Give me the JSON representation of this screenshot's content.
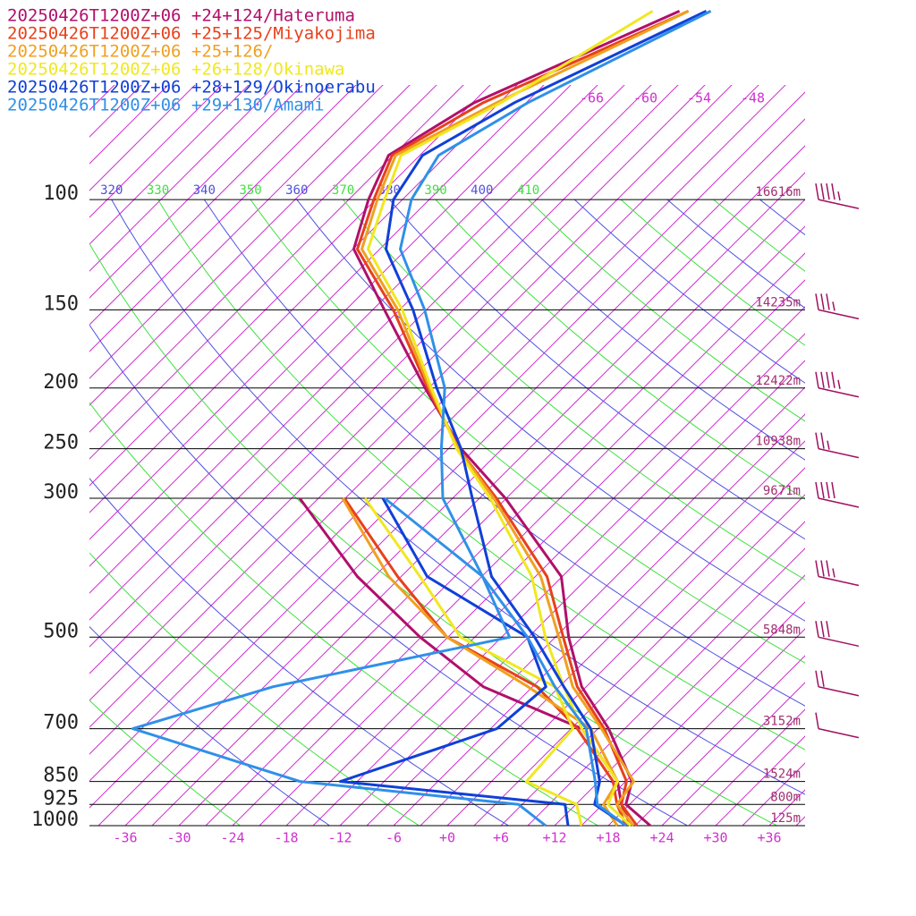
{
  "chart_data": {
    "type": "skewt",
    "ylim": [
      1000,
      48
    ],
    "ylog": true,
    "yticks": [
      100,
      150,
      200,
      250,
      300,
      500,
      700,
      850,
      925,
      1000
    ],
    "height_labels": [
      "16616m",
      "14235m",
      "12422m",
      "10938m",
      "9671m",
      "5848m",
      "3152m",
      "1524m",
      "800m",
      "125m"
    ],
    "xlim": [
      -40,
      40
    ],
    "xticks": [
      -36,
      -30,
      -24,
      -18,
      -12,
      -6,
      {
        "value": 0,
        "label": "+0"
      },
      {
        "value": 6,
        "label": "+6"
      },
      {
        "value": 12,
        "label": "+12"
      },
      {
        "value": 18,
        "label": "+18"
      },
      {
        "value": 24,
        "label": "+24"
      },
      {
        "value": 30,
        "label": "+30"
      },
      {
        "value": 36,
        "label": "+36"
      }
    ],
    "skew_deg": 45,
    "isotherm_interval": 3,
    "isotherm_color": "#d030d0",
    "isotherm_labels": [
      -66,
      -60,
      -54,
      -48
    ],
    "dry_adiabats": [
      250,
      260,
      270,
      280,
      290,
      300,
      310,
      320,
      330,
      340,
      350,
      360,
      370,
      380,
      390,
      400,
      410,
      420,
      430,
      440,
      450,
      460,
      470,
      480
    ],
    "dry_adiabat_labels": [
      320,
      330,
      340,
      350,
      360,
      370,
      380,
      390,
      400,
      410
    ],
    "dry_adiabat_colors": [
      "#5050e0",
      "#40e040"
    ],
    "levels": [
      1000,
      925,
      850,
      700,
      600,
      500,
      400,
      300,
      250,
      200,
      150,
      120,
      100,
      85,
      70,
      50
    ],
    "series": [
      {
        "name": "20250426T1200Z+06 +24+124/Hateruma",
        "color": "#b0106a",
        "temperature": [
          22.7,
          17.6,
          15.7,
          7.2,
          -0.5,
          -7.5,
          -15.1,
          -30.1,
          -40.6,
          -51.4,
          -64.7,
          -74.9,
          -78.8,
          -81.5,
          -77.8,
          -65.1
        ],
        "dewpoint": [
          20.5,
          17.1,
          14.1,
          4.2,
          -11.5,
          -24.1,
          -37.9,
          -53.1,
          null,
          null,
          null,
          null,
          null,
          null,
          null,
          null
        ]
      },
      {
        "name": "20250426T1200Z+06 +25+125/Miyakojima",
        "color": "#e8401c",
        "temperature": [
          21.2,
          17.1,
          15.1,
          6.7,
          -1.0,
          -8.1,
          -16.7,
          -31.1,
          -40.9,
          -51.1,
          -63.7,
          -74.5,
          -78.2,
          -81.1,
          -76.8,
          -64.1
        ],
        "dewpoint": [
          20.0,
          16.6,
          13.6,
          3.7,
          -5.5,
          -21.1,
          -33.4,
          -48.1,
          null,
          null,
          null,
          null,
          null,
          null,
          null,
          null
        ]
      },
      {
        "name": "20250426T1200Z+06 +25+126/",
        "color": "#f0a020",
        "temperature": [
          20.8,
          16.6,
          15.9,
          6.4,
          -1.5,
          -8.6,
          -17.4,
          -31.4,
          -40.9,
          -50.9,
          -63.2,
          -74.0,
          -77.8,
          -80.7,
          -75.3,
          -64.1
        ],
        "dewpoint": [
          19.0,
          15.1,
          14.1,
          5.2,
          -6.5,
          -21.1,
          -34.4,
          -48.3,
          null,
          null,
          null,
          null,
          null,
          null,
          null,
          null
        ]
      },
      {
        "name": "20250426T1200Z+06 +26+128/Okinawa",
        "color": "#f0e820",
        "temperature": [
          20.5,
          15.6,
          14.1,
          4.2,
          -2.5,
          -10.1,
          -18.4,
          -31.8,
          -41.1,
          -50.7,
          -62.7,
          -73.3,
          -77.0,
          -80.1,
          -74.8,
          -68.1
        ],
        "dewpoint": [
          15.0,
          12.1,
          3.9,
          3.2,
          -3.5,
          -19.6,
          -30.9,
          -45.8,
          null,
          null,
          null,
          null,
          null,
          null,
          null,
          null
        ]
      },
      {
        "name": "20250426T1200Z+06 +28+129/Okinoerabu",
        "color": "#1040d8",
        "temperature": [
          20.0,
          14.1,
          12.1,
          5.2,
          -2.5,
          -11.3,
          -22.9,
          -33.8,
          -40.6,
          -50.1,
          -61.5,
          -71.3,
          -76.0,
          -77.7,
          -73.3,
          -62.1
        ],
        "dewpoint": [
          13.5,
          10.8,
          -16.9,
          -5.3,
          -4.5,
          -12.1,
          -30.1,
          -43.8,
          null,
          null,
          null,
          null,
          null,
          null,
          null,
          null
        ]
      },
      {
        "name": "20250426T1200Z+06 +29+130/Amami",
        "color": "#3090e8",
        "temperature": [
          20.0,
          14.4,
          11.6,
          4.7,
          -3.5,
          -12.1,
          -23.9,
          -37.1,
          -42.8,
          -49.2,
          -60.2,
          -69.7,
          -74.0,
          -75.9,
          -71.8,
          -61.6
        ],
        "dewpoint": [
          11.0,
          5.6,
          -21.4,
          -46.0,
          -35.0,
          -14.1,
          -23.9,
          -43.6,
          null,
          null,
          null,
          null,
          null,
          null,
          null,
          null
        ]
      }
    ],
    "wind_levels": [
      100,
      150,
      200,
      250,
      300,
      400,
      500,
      600,
      700
    ],
    "wind_speed": [
      45,
      35,
      45,
      25,
      40,
      35,
      30,
      20,
      10
    ],
    "wind_color": "#a01060"
  }
}
